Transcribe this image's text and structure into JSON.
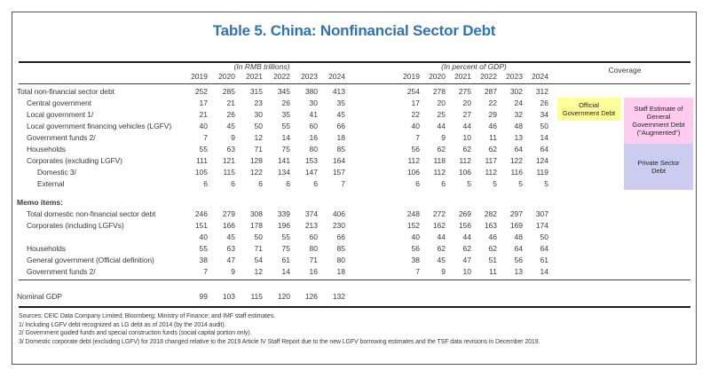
{
  "title": "Table 5. China: Nonfinancial Sector Debt",
  "header": {
    "rmb_group": "(In RMB trillions)",
    "gdp_group": "(In percent of GDP)",
    "years": [
      "2019",
      "2020",
      "2021",
      "2022",
      "2023",
      "2024"
    ]
  },
  "rows": [
    {
      "label": "Total non-financial sector debt",
      "indent": 0,
      "rmb": [
        252,
        285,
        315,
        345,
        380,
        413
      ],
      "pct": [
        254,
        278,
        275,
        287,
        302,
        312
      ]
    },
    {
      "label": "Central government",
      "indent": 1,
      "rmb": [
        17,
        21,
        23,
        26,
        30,
        35
      ],
      "pct": [
        17,
        20,
        20,
        22,
        24,
        26
      ]
    },
    {
      "label": "Local government 1/",
      "indent": 1,
      "rmb": [
        21,
        26,
        30,
        35,
        41,
        45
      ],
      "pct": [
        22,
        25,
        27,
        29,
        32,
        34
      ]
    },
    {
      "label": "Local government financing vehicles (LGFV)",
      "indent": 1,
      "rmb": [
        40,
        45,
        50,
        55,
        60,
        66
      ],
      "pct": [
        40,
        44,
        44,
        46,
        48,
        50
      ]
    },
    {
      "label": "Government funds 2/",
      "indent": 1,
      "rmb": [
        7,
        9,
        12,
        14,
        16,
        18
      ],
      "pct": [
        7,
        9,
        10,
        11,
        13,
        14
      ]
    },
    {
      "label": "Households",
      "indent": 1,
      "rmb": [
        55,
        63,
        71,
        75,
        80,
        85
      ],
      "pct": [
        56,
        62,
        62,
        62,
        64,
        64
      ]
    },
    {
      "label": "Corporates (excluding LGFV)",
      "indent": 1,
      "rmb": [
        111,
        121,
        128,
        141,
        153,
        164
      ],
      "pct": [
        112,
        118,
        112,
        117,
        122,
        124
      ]
    },
    {
      "label": "Domestic 3/",
      "indent": 2,
      "rmb": [
        105,
        115,
        122,
        134,
        147,
        157
      ],
      "pct": [
        106,
        112,
        106,
        112,
        116,
        119
      ]
    },
    {
      "label": "External",
      "indent": 2,
      "rmb": [
        6,
        6,
        6,
        6,
        6,
        7
      ],
      "pct": [
        6,
        6,
        5,
        5,
        5,
        5
      ]
    }
  ],
  "memo": {
    "heading": "Memo items:",
    "rows": [
      {
        "label": "Total domestic non-financial sector debt",
        "rmb": [
          246,
          279,
          308,
          339,
          374,
          406
        ],
        "pct": [
          248,
          272,
          269,
          282,
          297,
          307
        ]
      },
      {
        "label": "Corporates (including LGFVs)",
        "rmb": [
          151,
          166,
          178,
          196,
          213,
          230
        ],
        "pct": [
          152,
          162,
          156,
          163,
          169,
          174
        ]
      },
      {
        "label": "",
        "rmb": [
          40,
          45,
          50,
          55,
          60,
          66
        ],
        "pct": [
          40,
          44,
          44,
          46,
          48,
          50
        ]
      },
      {
        "label": "Households",
        "rmb": [
          55,
          63,
          71,
          75,
          80,
          85
        ],
        "pct": [
          56,
          62,
          62,
          62,
          64,
          64
        ]
      },
      {
        "label": "General government (Official definition)",
        "rmb": [
          38,
          47,
          54,
          61,
          71,
          80
        ],
        "pct": [
          38,
          45,
          47,
          51,
          56,
          61
        ]
      },
      {
        "label": "Government funds 2/",
        "rmb": [
          7,
          9,
          12,
          14,
          16,
          18
        ],
        "pct": [
          7,
          9,
          10,
          11,
          13,
          14
        ]
      }
    ]
  },
  "nominal_gdp": {
    "label": "Nominal GDP",
    "indent": 0,
    "rmb": [
      99,
      103,
      115,
      120,
      126,
      132
    ],
    "pct": []
  },
  "coverage": {
    "header": "Coverage",
    "boxes": [
      {
        "name": "official-government-debt",
        "lines": [
          "Official",
          "Government Debt"
        ],
        "color": "#FFFF99"
      },
      {
        "name": "augmented-government-debt",
        "lines": [
          "Staff Estimate of",
          "General",
          "Government Debt",
          "(\"Augmented\")"
        ],
        "color": "#FFCCF0"
      },
      {
        "name": "private-sector-debt",
        "lines": [
          "Private Sector",
          "Debt"
        ],
        "color": "#CCCCF0"
      }
    ]
  },
  "footnotes": [
    "Sources: CEIC Data Company Limited; Bloomberg; Ministry of Finance; and IMF staff estimates.",
    "1/ Including LGFV debt recognized as LG debt as of 2014 (by the 2014 audit).",
    "2/ Government guided funds and special construction funds (social capital portion only).",
    "3/ Domestic corporate debt (excluding LGFV) for 2018 changed relative to the 2019 Article IV Staff Report due to the new LGFV borrowing estimates and the TSF data revisions in December 2019."
  ]
}
